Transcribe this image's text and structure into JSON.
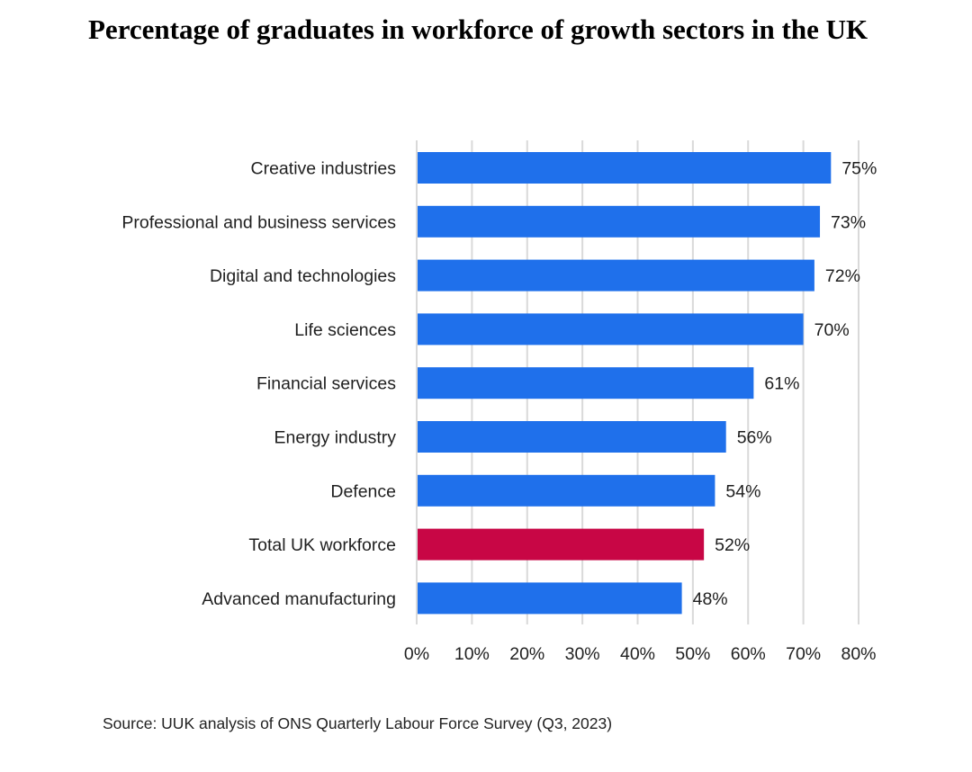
{
  "title": "Percentage of graduates in workforce of growth sectors in the UK",
  "source": "Source: UUK analysis of ONS Quarterly Labour Force Survey (Q3, 2023)",
  "colors": {
    "default_bar": "#1f70eb",
    "highlight_bar": "#c80645",
    "gridline": "#d9d9d9",
    "text": "#1f1f1f"
  },
  "chart_data": {
    "type": "bar",
    "orientation": "horizontal",
    "title": "Percentage of graduates in workforce of growth sectors in the UK",
    "xlabel": "",
    "ylabel": "",
    "xlim": [
      0,
      80
    ],
    "x_ticks": [
      0,
      10,
      20,
      30,
      40,
      50,
      60,
      70,
      80
    ],
    "x_tick_labels": [
      "0%",
      "10%",
      "20%",
      "30%",
      "40%",
      "50%",
      "60%",
      "70%",
      "80%"
    ],
    "grid": "vertical",
    "legend": "none",
    "categories": [
      "Creative industries",
      "Professional and business services",
      "Digital and technologies",
      "Life sciences",
      "Financial services",
      "Energy industry",
      "Defence",
      "Total UK workforce",
      "Advanced manufacturing"
    ],
    "values": [
      75,
      73,
      72,
      70,
      61,
      56,
      54,
      52,
      48
    ],
    "value_labels": [
      "75%",
      "73%",
      "72%",
      "70%",
      "61%",
      "56%",
      "54%",
      "52%",
      "48%"
    ],
    "highlighted": [
      "Total UK workforce"
    ]
  }
}
